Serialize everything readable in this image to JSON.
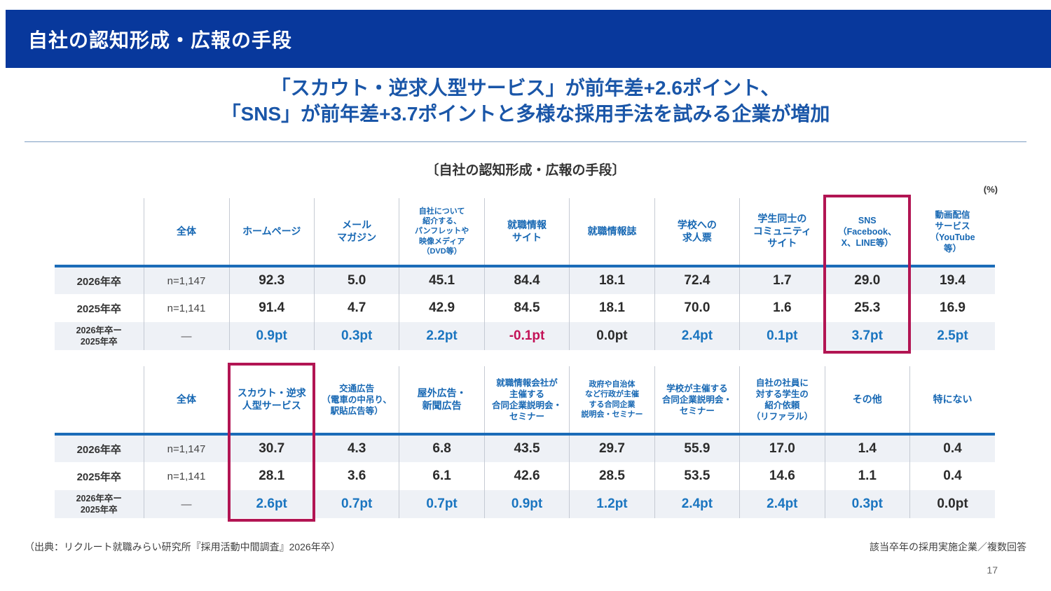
{
  "slide": {
    "title": "自社の認知形成・広報の手段",
    "subtitle_lines": [
      "「スカウト・逆求人型サービス」が前年差+2.6ポイント、",
      "「SNS」が前年差+3.7ポイントと多様な採用手法を試みる企業が増加"
    ],
    "table_caption": "〔自社の認知形成・広報の手段〕",
    "unit_label": "(%)",
    "source": "（出典：リクルート就職みらい研究所『採用活動中間調査』2026年卒）",
    "note": "該当卒年の採用実施企業／複数回答",
    "page_number": "17"
  },
  "colors": {
    "title_bar": "#08389c",
    "subtitle_blue": "#1a56a8",
    "header_text_blue": "#1667b3",
    "header_underline_blue": "#1b6cb8",
    "row_stripe": "#eef1f6",
    "positive_diff_blue": "#1a75c0",
    "negative_diff_red": "#c31257",
    "highlight_box": "#b21553"
  },
  "tables": [
    {
      "highlight_column": 8,
      "columns": [
        "全体",
        "ホームページ",
        "メール\nマガジン",
        "自社について\n紹介する、\nパンフレットや\n映像メディア\n（DVD等）",
        "就職情報\nサイト",
        "就職情報誌",
        "学校への\n求人票",
        "学生同士の\nコミュニティ\nサイト",
        "SNS\n（Facebook、\nX、LINE等）",
        "動画配信\nサービス\n（YouTube\n等）"
      ],
      "rows": [
        {
          "type": "data",
          "label": "2026年卒",
          "n": "n=1,147",
          "values": [
            "92.3",
            "5.0",
            "45.1",
            "84.4",
            "18.1",
            "72.4",
            "1.7",
            "29.0",
            "19.4"
          ]
        },
        {
          "type": "data",
          "label": "2025年卒",
          "n": "n=1,141",
          "values": [
            "91.4",
            "4.7",
            "42.9",
            "84.5",
            "18.1",
            "70.0",
            "1.6",
            "25.3",
            "16.9"
          ]
        },
        {
          "type": "diff",
          "label": "2026年卒ー\n2025年卒",
          "n": "—",
          "values": [
            "0.9pt",
            "0.3pt",
            "2.2pt",
            "-0.1pt",
            "0.0pt",
            "2.4pt",
            "0.1pt",
            "3.7pt",
            "2.5pt"
          ]
        }
      ]
    },
    {
      "highlight_column": 1,
      "columns": [
        "全体",
        "スカウト・逆求\n人型サービス",
        "交通広告\n（電車の中吊り、\n駅貼広告等）",
        "屋外広告・\n新聞広告",
        "就職情報会社が\n主催する\n合同企業説明会・\nセミナー",
        "政府や自治体\nなど行政が主催\nする合同企業\n説明会・セミナー",
        "学校が主催する\n合同企業説明会・\nセミナー",
        "自社の社員に\n対する学生の\n紹介依頼\n（リファラル）",
        "その他",
        "特にない"
      ],
      "rows": [
        {
          "type": "data",
          "label": "2026年卒",
          "n": "n=1,147",
          "values": [
            "30.7",
            "4.3",
            "6.8",
            "43.5",
            "29.7",
            "55.9",
            "17.0",
            "1.4",
            "0.4"
          ]
        },
        {
          "type": "data",
          "label": "2025年卒",
          "n": "n=1,141",
          "values": [
            "28.1",
            "3.6",
            "6.1",
            "42.6",
            "28.5",
            "53.5",
            "14.6",
            "1.1",
            "0.4"
          ]
        },
        {
          "type": "diff",
          "label": "2026年卒ー\n2025年卒",
          "n": "—",
          "values": [
            "2.6pt",
            "0.7pt",
            "0.7pt",
            "0.9pt",
            "1.2pt",
            "2.4pt",
            "2.4pt",
            "0.3pt",
            "0.0pt"
          ]
        }
      ]
    }
  ]
}
